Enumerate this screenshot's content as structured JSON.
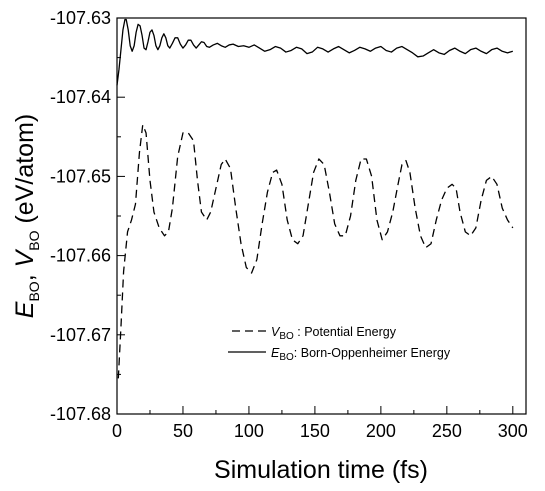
{
  "chart_data": {
    "type": "line",
    "title": "",
    "xlabel": "Simulation time (fs)",
    "ylabel": {
      "e_sym": "E",
      "e_sub": "BO",
      "sep": ", ",
      "v_sym": "V",
      "v_sub": "BO",
      "unit": " (eV/atom)"
    },
    "xlim": [
      0,
      310
    ],
    "ylim": [
      -107.68,
      -107.63
    ],
    "xticks": [
      {
        "value": 0,
        "label": "0"
      },
      {
        "value": 50,
        "label": "50"
      },
      {
        "value": 100,
        "label": "100"
      },
      {
        "value": 150,
        "label": "150"
      },
      {
        "value": 200,
        "label": "200"
      },
      {
        "value": 250,
        "label": "250"
      },
      {
        "value": 300,
        "label": "300"
      }
    ],
    "yticks": [
      {
        "value": -107.63,
        "label": "-107.63"
      },
      {
        "value": -107.64,
        "label": "-107.64"
      },
      {
        "value": -107.65,
        "label": "-107.65"
      },
      {
        "value": -107.66,
        "label": "-107.66"
      },
      {
        "value": -107.67,
        "label": "-107.67"
      },
      {
        "value": -107.68,
        "label": "-107.68"
      }
    ],
    "grid": false,
    "legend_position": "lower-right",
    "series": [
      {
        "name": "Potential Energy",
        "legend": {
          "sym": "V",
          "sub": "BO",
          "text": " : Potential Energy"
        },
        "style": "dashed",
        "color": "#000000",
        "points": [
          [
            1,
            -107.6755
          ],
          [
            3,
            -107.669
          ],
          [
            5,
            -107.662
          ],
          [
            8,
            -107.657
          ],
          [
            11,
            -107.6555
          ],
          [
            14,
            -107.6535
          ],
          [
            17,
            -107.647
          ],
          [
            19.5,
            -107.6435
          ],
          [
            22,
            -107.6445
          ],
          [
            25,
            -107.6505
          ],
          [
            28,
            -107.6545
          ],
          [
            32,
            -107.6565
          ],
          [
            36,
            -107.6575
          ],
          [
            39,
            -107.657
          ],
          [
            42,
            -107.654
          ],
          [
            46,
            -107.6475
          ],
          [
            50,
            -107.6445
          ],
          [
            54,
            -107.6445
          ],
          [
            58,
            -107.6455
          ],
          [
            61,
            -107.6505
          ],
          [
            64,
            -107.6545
          ],
          [
            68,
            -107.6555
          ],
          [
            71,
            -107.6545
          ],
          [
            75,
            -107.6515
          ],
          [
            79,
            -107.6485
          ],
          [
            82,
            -107.6478
          ],
          [
            86,
            -107.649
          ],
          [
            90,
            -107.654
          ],
          [
            94,
            -107.6585
          ],
          [
            98,
            -107.6615
          ],
          [
            102,
            -107.6622
          ],
          [
            106,
            -107.6605
          ],
          [
            110,
            -107.656
          ],
          [
            114,
            -107.652
          ],
          [
            118,
            -107.6495
          ],
          [
            121,
            -107.6492
          ],
          [
            125,
            -107.651
          ],
          [
            129,
            -107.6555
          ],
          [
            133,
            -107.658
          ],
          [
            137,
            -107.6585
          ],
          [
            141,
            -107.6575
          ],
          [
            145,
            -107.6535
          ],
          [
            149,
            -107.6495
          ],
          [
            153,
            -107.6478
          ],
          [
            157,
            -107.6485
          ],
          [
            161,
            -107.652
          ],
          [
            165,
            -107.656
          ],
          [
            169,
            -107.6575
          ],
          [
            173,
            -107.6575
          ],
          [
            177,
            -107.655
          ],
          [
            181,
            -107.6505
          ],
          [
            185,
            -107.6478
          ],
          [
            189,
            -107.6478
          ],
          [
            193,
            -107.65
          ],
          [
            197,
            -107.6555
          ],
          [
            201,
            -107.658
          ],
          [
            205,
            -107.657
          ],
          [
            209,
            -107.6545
          ],
          [
            213,
            -107.651
          ],
          [
            216,
            -107.6485
          ],
          [
            219,
            -107.648
          ],
          [
            222,
            -107.6495
          ],
          [
            226,
            -107.654
          ],
          [
            230,
            -107.6575
          ],
          [
            234,
            -107.659
          ],
          [
            238,
            -107.6585
          ],
          [
            242,
            -107.6555
          ],
          [
            246,
            -107.653
          ],
          [
            250,
            -107.6515
          ],
          [
            254,
            -107.651
          ],
          [
            257,
            -107.6515
          ],
          [
            260,
            -107.6545
          ],
          [
            264,
            -107.657
          ],
          [
            268,
            -107.6575
          ],
          [
            272,
            -107.6565
          ],
          [
            276,
            -107.653
          ],
          [
            280,
            -107.6505
          ],
          [
            284,
            -107.65
          ],
          [
            288,
            -107.651
          ],
          [
            292,
            -107.654
          ],
          [
            296,
            -107.6555
          ],
          [
            300,
            -107.6565
          ]
        ]
      },
      {
        "name": "Born-Oppenheimer Energy",
        "legend": {
          "sym": "E",
          "sub": "BO",
          "text": ": Born-Oppenheimer Energy"
        },
        "style": "solid",
        "color": "#000000",
        "points": [
          [
            0,
            -107.6385
          ],
          [
            1.5,
            -107.6365
          ],
          [
            3,
            -107.634
          ],
          [
            4.5,
            -107.6315
          ],
          [
            6,
            -107.6302
          ],
          [
            7,
            -107.6302
          ],
          [
            8.5,
            -107.6315
          ],
          [
            10,
            -107.6335
          ],
          [
            11.5,
            -107.6342
          ],
          [
            13,
            -107.6335
          ],
          [
            14.5,
            -107.6318
          ],
          [
            16,
            -107.6308
          ],
          [
            17.5,
            -107.631
          ],
          [
            19,
            -107.6322
          ],
          [
            20.5,
            -107.6338
          ],
          [
            22,
            -107.634
          ],
          [
            23.5,
            -107.633
          ],
          [
            25,
            -107.6318
          ],
          [
            26.5,
            -107.6315
          ],
          [
            28,
            -107.6322
          ],
          [
            29.5,
            -107.6335
          ],
          [
            31,
            -107.634
          ],
          [
            32.5,
            -107.6335
          ],
          [
            34,
            -107.6325
          ],
          [
            35.5,
            -107.632
          ],
          [
            37,
            -107.6325
          ],
          [
            38.5,
            -107.6335
          ],
          [
            40,
            -107.6338
          ],
          [
            42,
            -107.6332
          ],
          [
            44,
            -107.6325
          ],
          [
            46,
            -107.6325
          ],
          [
            48,
            -107.6333
          ],
          [
            50,
            -107.6338
          ],
          [
            52,
            -107.6334
          ],
          [
            54,
            -107.6328
          ],
          [
            56,
            -107.6328
          ],
          [
            58,
            -107.6334
          ],
          [
            60,
            -107.6338
          ],
          [
            62,
            -107.6334
          ],
          [
            64,
            -107.633
          ],
          [
            66,
            -107.6331
          ],
          [
            68,
            -107.6336
          ],
          [
            70,
            -107.6337
          ],
          [
            73,
            -107.6334
          ],
          [
            76,
            -107.6332
          ],
          [
            79,
            -107.6335
          ],
          [
            82,
            -107.6337
          ],
          [
            85,
            -107.6334
          ],
          [
            88,
            -107.6333
          ],
          [
            92,
            -107.6336
          ],
          [
            96,
            -107.6335
          ],
          [
            100,
            -107.6337
          ],
          [
            104,
            -107.6334
          ],
          [
            108,
            -107.6338
          ],
          [
            112,
            -107.6342
          ],
          [
            116,
            -107.634
          ],
          [
            120,
            -107.6336
          ],
          [
            124,
            -107.6338
          ],
          [
            128,
            -107.6343
          ],
          [
            132,
            -107.6341
          ],
          [
            136,
            -107.6337
          ],
          [
            140,
            -107.6339
          ],
          [
            144,
            -107.6345
          ],
          [
            148,
            -107.6343
          ],
          [
            152,
            -107.6337
          ],
          [
            156,
            -107.6339
          ],
          [
            160,
            -107.6343
          ],
          [
            164,
            -107.6339
          ],
          [
            168,
            -107.6336
          ],
          [
            172,
            -107.634
          ],
          [
            176,
            -107.6344
          ],
          [
            180,
            -107.6341
          ],
          [
            184,
            -107.6337
          ],
          [
            188,
            -107.6339
          ],
          [
            192,
            -107.6342
          ],
          [
            196,
            -107.6338
          ],
          [
            200,
            -107.6336
          ],
          [
            204,
            -107.6341
          ],
          [
            208,
            -107.6343
          ],
          [
            212,
            -107.6338
          ],
          [
            216,
            -107.6336
          ],
          [
            220,
            -107.634
          ],
          [
            224,
            -107.6344
          ],
          [
            228,
            -107.6349
          ],
          [
            232,
            -107.6348
          ],
          [
            236,
            -107.6344
          ],
          [
            240,
            -107.634
          ],
          [
            244,
            -107.6344
          ],
          [
            248,
            -107.6346
          ],
          [
            252,
            -107.6341
          ],
          [
            256,
            -107.6338
          ],
          [
            260,
            -107.6342
          ],
          [
            264,
            -107.6345
          ],
          [
            268,
            -107.634
          ],
          [
            272,
            -107.6338
          ],
          [
            276,
            -107.6342
          ],
          [
            280,
            -107.6345
          ],
          [
            284,
            -107.634
          ],
          [
            288,
            -107.6338
          ],
          [
            292,
            -107.6342
          ],
          [
            296,
            -107.6344
          ],
          [
            300,
            -107.6342
          ]
        ]
      }
    ]
  }
}
